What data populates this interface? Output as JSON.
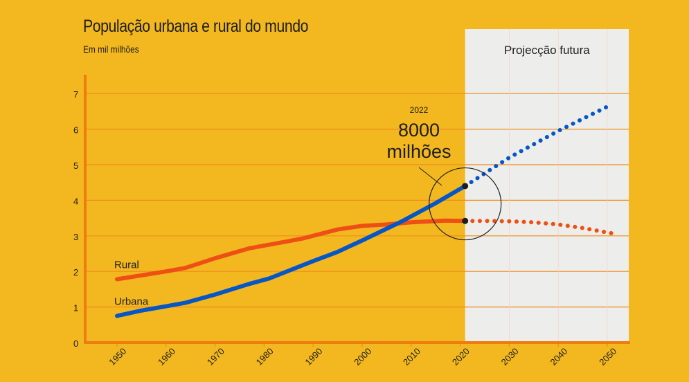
{
  "chart_data": {
    "type": "line",
    "title": "População urbana e rural do mundo",
    "subtitle": "Em mil milhões",
    "projection_label": "Projecção futura",
    "projection_start": 2021,
    "x_ticks": [
      1950,
      1960,
      1970,
      1980,
      1990,
      2000,
      2010,
      2020,
      2030,
      2040,
      2050
    ],
    "y_ticks": [
      0,
      1,
      2,
      3,
      4,
      5,
      6,
      7
    ],
    "xlim": [
      1943,
      2054
    ],
    "ylim": [
      0,
      7
    ],
    "series": [
      {
        "name": "Rural",
        "color": "#ee4f14",
        "x": [
          1950,
          1960,
          1964,
          1970,
          1977,
          1983,
          1988,
          1995,
          2000,
          2005,
          2010,
          2017,
          2021
        ],
        "y": [
          1.78,
          2.0,
          2.1,
          2.37,
          2.65,
          2.8,
          2.93,
          3.18,
          3.28,
          3.32,
          3.38,
          3.43,
          3.42
        ],
        "projection_x": [
          2021,
          2025,
          2030,
          2035,
          2040,
          2045,
          2051
        ],
        "projection_y": [
          3.42,
          3.42,
          3.41,
          3.38,
          3.32,
          3.22,
          3.07
        ]
      },
      {
        "name": "Urbana",
        "color": "#0756c6",
        "x": [
          1950,
          1955,
          1960,
          1964,
          1970,
          1977,
          1981,
          1990,
          1995,
          2000,
          2008,
          2015,
          2021
        ],
        "y": [
          0.75,
          0.9,
          1.02,
          1.12,
          1.35,
          1.65,
          1.8,
          2.29,
          2.55,
          2.87,
          3.4,
          3.92,
          4.4
        ],
        "projection_x": [
          2021,
          2030,
          2040,
          2051
        ],
        "projection_y": [
          4.4,
          5.2,
          5.95,
          6.7
        ]
      }
    ],
    "annotation": {
      "year": "2022",
      "value": "8000",
      "unit": "milhões"
    }
  }
}
